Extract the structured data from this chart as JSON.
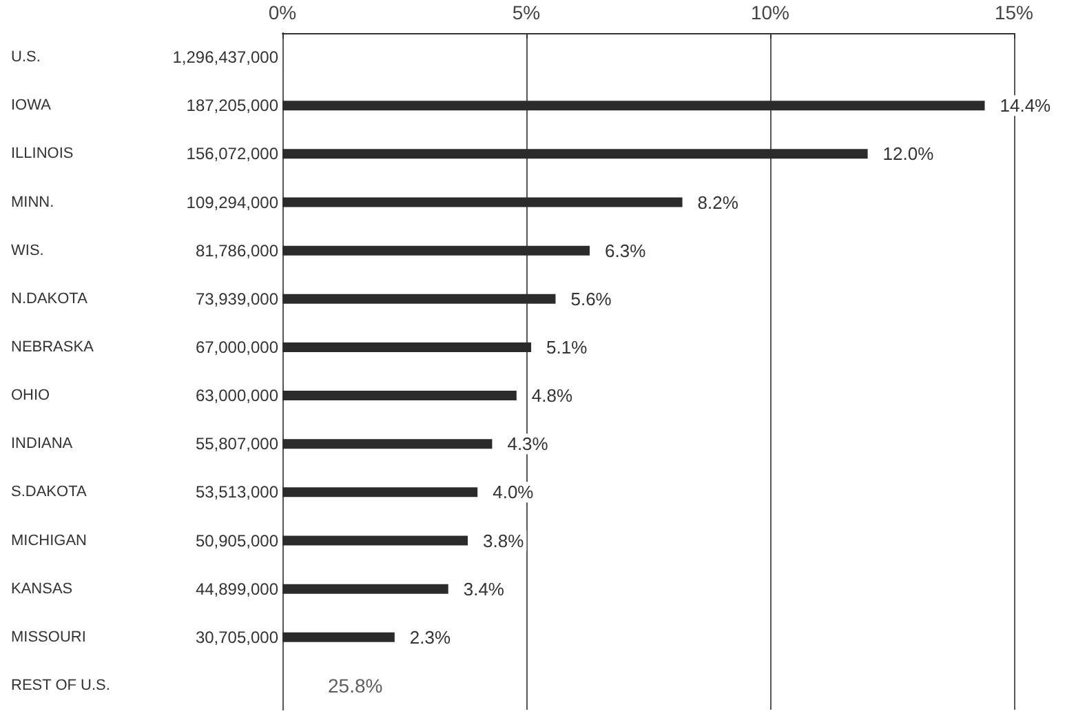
{
  "chart_data": {
    "type": "bar",
    "orientation": "horizontal",
    "categories": [
      "U.S.",
      "IOWA",
      "ILLINOIS",
      "MINN.",
      "WIS.",
      "N.DAKOTA",
      "NEBRASKA",
      "OHIO",
      "INDIANA",
      "S.DAKOTA",
      "MICHIGAN",
      "KANSAS",
      "MISSOURI",
      "REST OF U.S."
    ],
    "values": [
      null,
      14.4,
      12.0,
      8.2,
      6.3,
      5.6,
      5.1,
      4.8,
      4.3,
      4.0,
      3.8,
      3.4,
      2.3,
      null
    ],
    "value_labels": [
      null,
      "14.4%",
      "12.0%",
      "8.2%",
      "6.3%",
      "5.6%",
      "5.1%",
      "4.8%",
      "4.3%",
      "4.0%",
      "3.8%",
      "3.4%",
      "2.3%",
      "25.8%"
    ],
    "annotations": [
      "1,296,437,000",
      "187,205,000",
      "156,072,000",
      "109,294,000",
      "81,786,000",
      "73,939,000",
      "67,000,000",
      "63,000,000",
      "55,807,000",
      "53,513,000",
      "50,905,000",
      "44,899,000",
      "30,705,000"
    ],
    "color": "#2b2b2b",
    "x2lim": [
      0,
      15
    ],
    "x2ticks": [
      {
        "value": 0,
        "label": "0%"
      },
      {
        "value": 5,
        "label": "5%"
      },
      {
        "value": 10,
        "label": "10%"
      },
      {
        "value": 15,
        "label": "15%"
      }
    ],
    "grid": "x"
  }
}
